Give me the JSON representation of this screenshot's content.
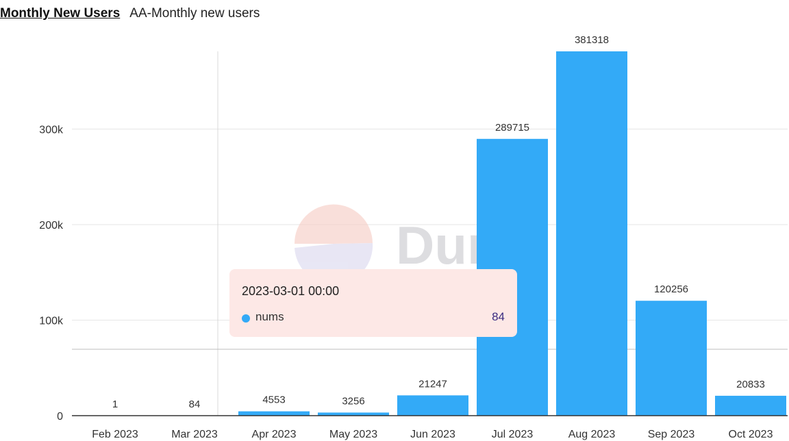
{
  "header": {
    "title": "Monthly New Users",
    "subtitle": "AA-Monthly new users"
  },
  "watermark": {
    "text": "Dune"
  },
  "tooltip": {
    "date": "2023-03-01 00:00",
    "series_name": "nums",
    "value": "84"
  },
  "colors": {
    "bar": "#33aaf7",
    "grid": "#e6e6e6",
    "axis": "#333333",
    "watermark_pie": "#f6cbc3",
    "watermark_pie_slice": "#d9d7ee"
  },
  "chart_data": {
    "type": "bar",
    "title": "Monthly New Users",
    "categories": [
      "Feb 2023",
      "Mar 2023",
      "Apr 2023",
      "May 2023",
      "Jun 2023",
      "Jul 2023",
      "Aug 2023",
      "Sep 2023",
      "Oct 2023"
    ],
    "series": [
      {
        "name": "nums",
        "values": [
          1,
          84,
          4553,
          3256,
          21247,
          289715,
          381318,
          120256,
          20833
        ]
      }
    ],
    "data_labels": [
      "1",
      "84",
      "4553",
      "3256",
      "21247",
      "289715",
      "381318",
      "120256",
      "20833"
    ],
    "y_ticks": [
      0,
      100000,
      200000,
      300000
    ],
    "y_tick_labels": [
      "0",
      "100k",
      "200k",
      "300k"
    ],
    "ylim": [
      0,
      381318
    ],
    "grid": true,
    "legend": "none",
    "crosshair_category": "Mar 2023"
  }
}
